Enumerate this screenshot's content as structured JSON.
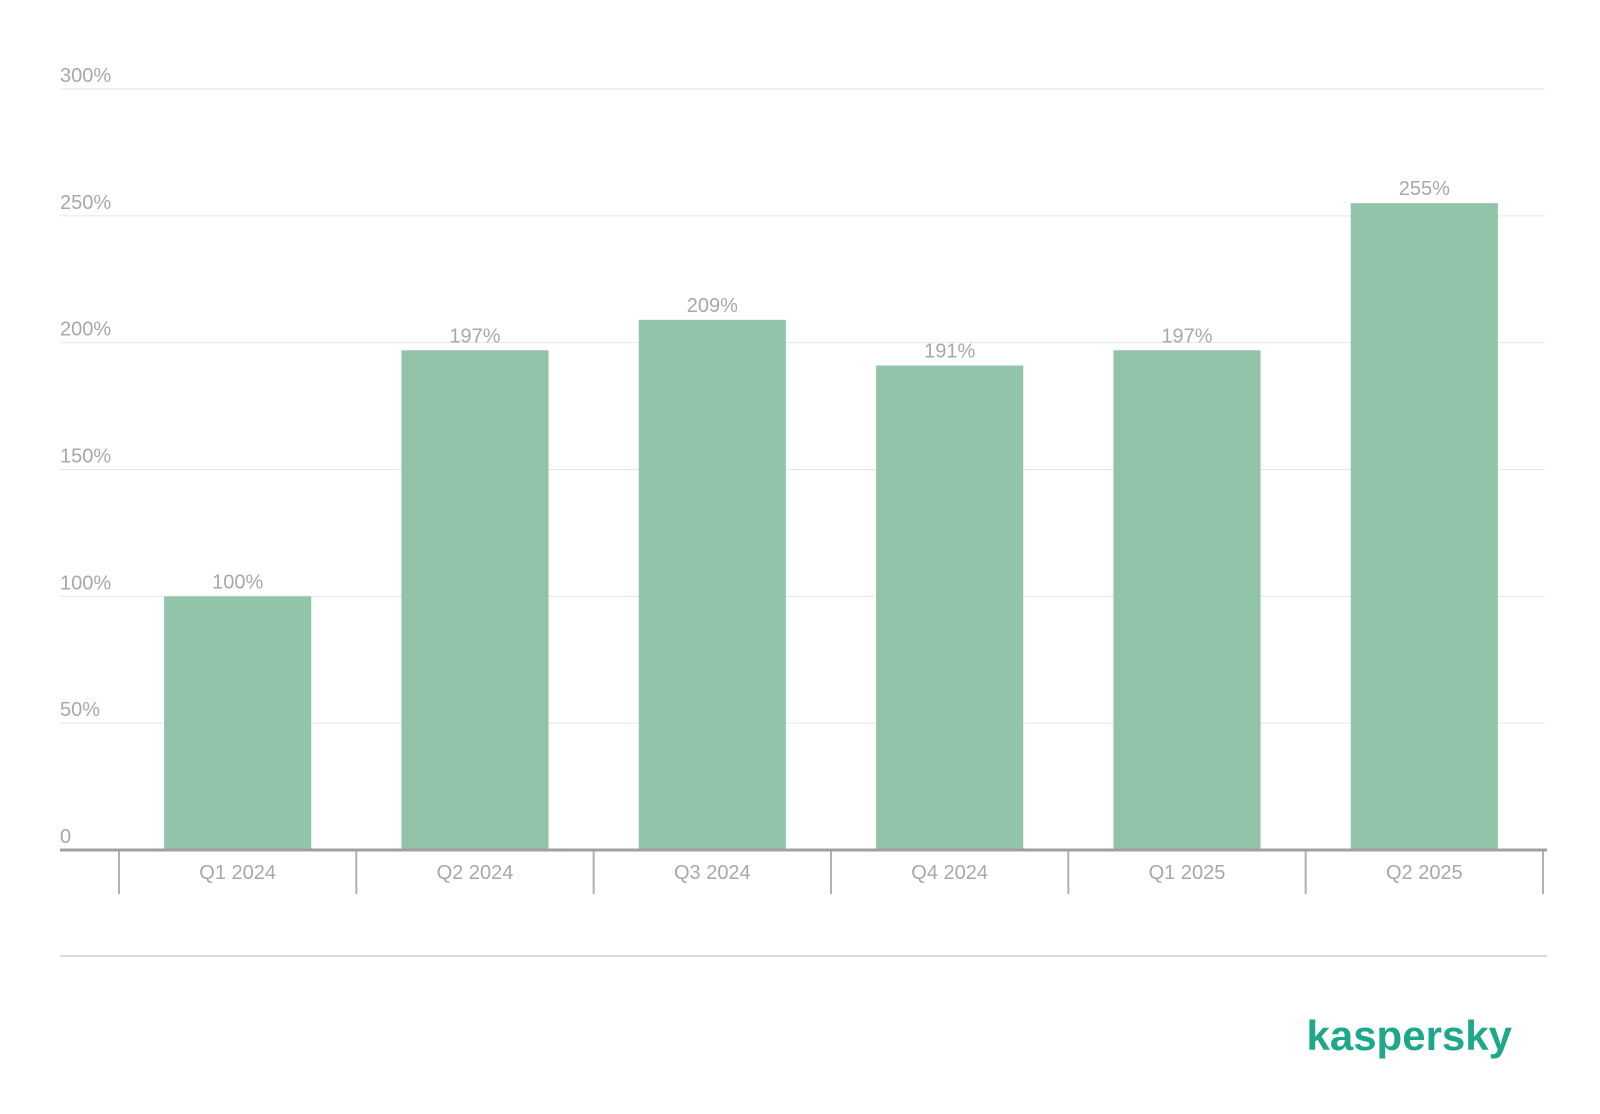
{
  "chart_data": {
    "type": "bar",
    "categories": [
      "Q1 2024",
      "Q2 2024",
      "Q3 2024",
      "Q4 2024",
      "Q1 2025",
      "Q2 2025"
    ],
    "values": [
      100,
      197,
      209,
      191,
      197,
      255
    ],
    "value_labels": [
      "100%",
      "197%",
      "209%",
      "191%",
      "197%",
      "255%"
    ],
    "color": "#91c4a8",
    "ylim": [
      0,
      300
    ],
    "yticks": [
      0,
      {
        "value": 50,
        "label": "50%"
      },
      {
        "value": 100,
        "label": "100%"
      },
      {
        "value": 150,
        "label": "150%"
      },
      {
        "value": 200,
        "label": "200%"
      },
      {
        "value": 250,
        "label": "250%"
      },
      {
        "value": 300,
        "label": "300%"
      }
    ],
    "grid": true
  },
  "logo": "kaspersky"
}
